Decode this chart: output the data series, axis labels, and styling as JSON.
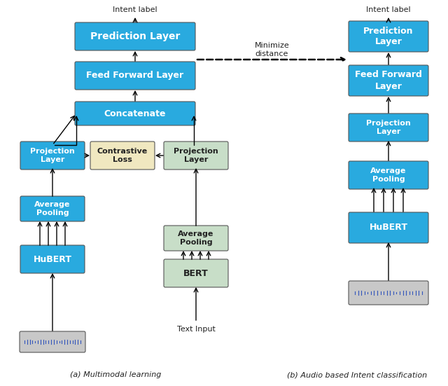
{
  "fig_width": 6.4,
  "fig_height": 5.51,
  "dpi": 100,
  "bg_color": "#ffffff",
  "blue_color": "#29AADF",
  "green_color": "#C8DEC8",
  "yellow_color": "#F0E8C0",
  "gray_color": "#C8C8C8",
  "white_text": "#ffffff",
  "dark_text": "#222222",
  "caption_a": "(a) Multimodal learning",
  "caption_b": "(b) Audio based Intent classification",
  "minimize_text": "Minimize\ndistance",
  "text_input": "Text Input",
  "intent_label": "Intent label"
}
